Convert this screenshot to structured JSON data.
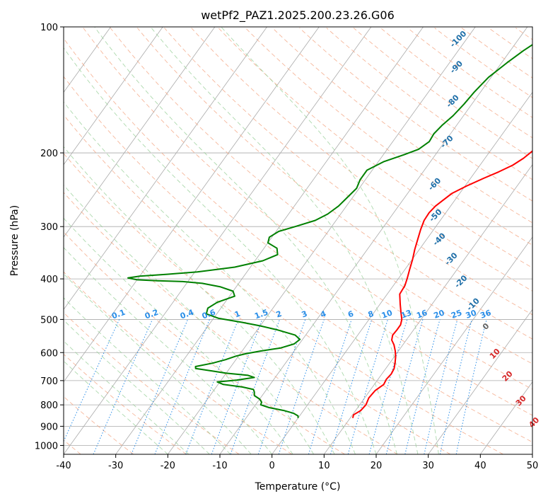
{
  "chart_data": {
    "type": "line",
    "title": "wetPf2_PAZ1.2025.200.23.26.G06",
    "xlabel": "Temperature (°C)",
    "ylabel": "Pressure (hPa)",
    "xlim": [
      -40,
      50
    ],
    "ylim": [
      1050,
      100
    ],
    "y_scale": "log",
    "grid": true,
    "x_ticks": [
      "-40",
      "-30",
      "-20",
      "-10",
      "0",
      "10",
      "20",
      "30",
      "40",
      "50"
    ],
    "x_tick_values": [
      -40,
      -30,
      -20,
      -10,
      0,
      10,
      20,
      30,
      40,
      50
    ],
    "y_ticks": [
      "100",
      "200",
      "300",
      "400",
      "500",
      "600",
      "700",
      "800",
      "900",
      "1000"
    ],
    "y_tick_values": [
      100,
      200,
      300,
      400,
      500,
      600,
      700,
      800,
      900,
      1000
    ],
    "colors": {
      "temperature": "#ff0000",
      "dewpoint": "#008000",
      "isotherm": "#aaaaaa",
      "dry_adiabat": "#f4a582",
      "moist_adiabat": "#98cf98",
      "mixing_ratio": "#2a8ee8",
      "moist_label": "#1f6fa8",
      "dry_label": "#d62728",
      "wetbulb_label": "#666666"
    },
    "series": [
      {
        "key": "temperature",
        "points": [
          [
            10.5,
            860
          ],
          [
            10.2,
            845
          ],
          [
            11.0,
            825
          ],
          [
            11.2,
            800
          ],
          [
            10.8,
            770
          ],
          [
            11.0,
            740
          ],
          [
            11.8,
            715
          ],
          [
            11.6,
            695
          ],
          [
            11.8,
            675
          ],
          [
            11.6,
            655
          ],
          [
            11.0,
            635
          ],
          [
            10.3,
            615
          ],
          [
            9.4,
            595
          ],
          [
            8.3,
            575
          ],
          [
            7.2,
            560
          ],
          [
            6.7,
            545
          ],
          [
            6.8,
            530
          ],
          [
            6.8,
            515
          ],
          [
            6.3,
            500
          ],
          [
            5.1,
            480
          ],
          [
            3.9,
            460
          ],
          [
            2.4,
            435
          ],
          [
            2.2,
            415
          ],
          [
            1.7,
            400
          ],
          [
            0.9,
            380
          ],
          [
            0.1,
            360
          ],
          [
            -0.9,
            340
          ],
          [
            -1.8,
            320
          ],
          [
            -2.5,
            305
          ],
          [
            -3.1,
            290
          ],
          [
            -3.2,
            278
          ],
          [
            -2.9,
            268
          ],
          [
            -2.3,
            260
          ],
          [
            -1.5,
            250
          ],
          [
            0.3,
            240
          ],
          [
            2.5,
            230
          ],
          [
            4.5,
            222
          ],
          [
            6.3,
            214
          ],
          [
            7.4,
            206
          ],
          [
            8.1,
            198
          ],
          [
            8.7,
            190
          ],
          [
            9.2,
            182
          ],
          [
            9.9,
            172
          ],
          [
            10.5,
            163
          ],
          [
            11.1,
            155
          ],
          [
            12.0,
            146
          ],
          [
            13.0,
            137
          ],
          [
            14.1,
            128
          ],
          [
            14.8,
            120
          ],
          [
            15.4,
            113
          ],
          [
            16.8,
            107
          ],
          [
            18.0,
            100
          ]
        ]
      },
      {
        "key": "dewpoint",
        "points": [
          [
            0.0,
            860
          ],
          [
            -0.3,
            850
          ],
          [
            -1.5,
            838
          ],
          [
            -3.8,
            825
          ],
          [
            -7.0,
            812
          ],
          [
            -9.0,
            800
          ],
          [
            -9.2,
            788
          ],
          [
            -10.0,
            775
          ],
          [
            -11.5,
            760
          ],
          [
            -12.0,
            745
          ],
          [
            -12.5,
            735
          ],
          [
            -15.0,
            725
          ],
          [
            -19.0,
            715
          ],
          [
            -20.5,
            705
          ],
          [
            -17.0,
            698
          ],
          [
            -14.0,
            688
          ],
          [
            -15.5,
            680
          ],
          [
            -20.0,
            672
          ],
          [
            -23.0,
            664
          ],
          [
            -26.5,
            655
          ],
          [
            -26.8,
            648
          ],
          [
            -24.0,
            636
          ],
          [
            -22.0,
            624
          ],
          [
            -20.5,
            612
          ],
          [
            -19.0,
            604
          ],
          [
            -16.5,
            595
          ],
          [
            -13.0,
            585
          ],
          [
            -11.0,
            572
          ],
          [
            -10.5,
            558
          ],
          [
            -12.0,
            545
          ],
          [
            -16.0,
            530
          ],
          [
            -20.0,
            518
          ],
          [
            -24.0,
            508
          ],
          [
            -29.0,
            497
          ],
          [
            -32.0,
            485
          ],
          [
            -32.5,
            470
          ],
          [
            -31.5,
            455
          ],
          [
            -29.0,
            440
          ],
          [
            -30.0,
            428
          ],
          [
            -33.0,
            418
          ],
          [
            -37.0,
            410
          ],
          [
            -41.0,
            406
          ],
          [
            -46.0,
            404
          ],
          [
            -50.0,
            402
          ],
          [
            -52.0,
            398
          ],
          [
            -50.0,
            394
          ],
          [
            -45.0,
            390
          ],
          [
            -39.5,
            385
          ],
          [
            -33.0,
            375
          ],
          [
            -28.5,
            362
          ],
          [
            -26.5,
            350
          ],
          [
            -27.5,
            338
          ],
          [
            -30.0,
            328
          ],
          [
            -30.5,
            318
          ],
          [
            -29.5,
            308
          ],
          [
            -27.0,
            300
          ],
          [
            -24.0,
            290
          ],
          [
            -22.5,
            280
          ],
          [
            -21.5,
            268
          ],
          [
            -21.0,
            255
          ],
          [
            -20.5,
            243
          ],
          [
            -21.0,
            232
          ],
          [
            -21.0,
            220
          ],
          [
            -19.0,
            210
          ],
          [
            -16.0,
            202
          ],
          [
            -14.0,
            196
          ],
          [
            -13.0,
            188
          ],
          [
            -13.2,
            180
          ],
          [
            -12.8,
            172
          ],
          [
            -12.0,
            163
          ],
          [
            -11.5,
            153
          ],
          [
            -11.2,
            143
          ],
          [
            -10.5,
            132
          ],
          [
            -9.0,
            122
          ],
          [
            -7.5,
            114
          ],
          [
            -6.0,
            108
          ],
          [
            -4.5,
            103
          ],
          [
            -3.5,
            100
          ]
        ]
      }
    ],
    "isotherm_values": [
      -100,
      -90,
      -80,
      -70,
      -60,
      -50,
      -40,
      -30,
      -20,
      -10,
      0,
      10,
      20,
      30,
      40,
      50
    ],
    "dry_adiabats_c": [
      -40,
      -30,
      -20,
      -10,
      0,
      10,
      20,
      30,
      40,
      50,
      60,
      70,
      80,
      90,
      100,
      110,
      120,
      130,
      140,
      150,
      160,
      170,
      180,
      190,
      200,
      210,
      220,
      230
    ],
    "moist_adiabats_c": [
      -20,
      -16,
      -12,
      -8,
      -4,
      0,
      4,
      8,
      12,
      16,
      20,
      24,
      28,
      32
    ],
    "mixing_ratios": [
      0.1,
      0.2,
      0.4,
      0.6,
      1,
      1.5,
      2,
      3,
      4,
      6,
      8,
      10,
      13,
      16,
      20,
      25,
      30,
      36
    ],
    "mixing_ratio_labels": [
      "0.1",
      "0.2",
      "0.4",
      "0.6",
      "1",
      "1.5",
      "2",
      "3",
      "4",
      "6",
      "8",
      "10",
      "13",
      "16",
      "20",
      "25",
      "30",
      "36"
    ],
    "mixing_ratio_top_hpa": 500,
    "moist_labels": [
      {
        "text": "-100",
        "x": -21.0,
        "p": 108
      },
      {
        "text": "-90",
        "x": -17.5,
        "p": 126
      },
      {
        "text": "-80",
        "x": -13.5,
        "p": 152
      },
      {
        "text": "-70",
        "x": -9.0,
        "p": 190
      },
      {
        "text": "-60",
        "x": -5.5,
        "p": 240
      },
      {
        "text": "-50",
        "x": -1.0,
        "p": 285
      },
      {
        "text": "-40",
        "x": 3.0,
        "p": 325
      },
      {
        "text": "-30",
        "x": 8.0,
        "p": 362
      },
      {
        "text": "-20",
        "x": 13.0,
        "p": 410
      },
      {
        "text": "-10",
        "x": 18.5,
        "p": 465
      }
    ],
    "dry_labels": [
      {
        "text": "10",
        "x": 29.5,
        "p": 610
      },
      {
        "text": "20",
        "x": 35.0,
        "p": 690
      },
      {
        "text": "30",
        "x": 41.0,
        "p": 790
      },
      {
        "text": "40",
        "x": 46.5,
        "p": 890
      }
    ],
    "wetbulb_label": {
      "text": "0",
      "x": 24.0,
      "p": 525
    }
  }
}
